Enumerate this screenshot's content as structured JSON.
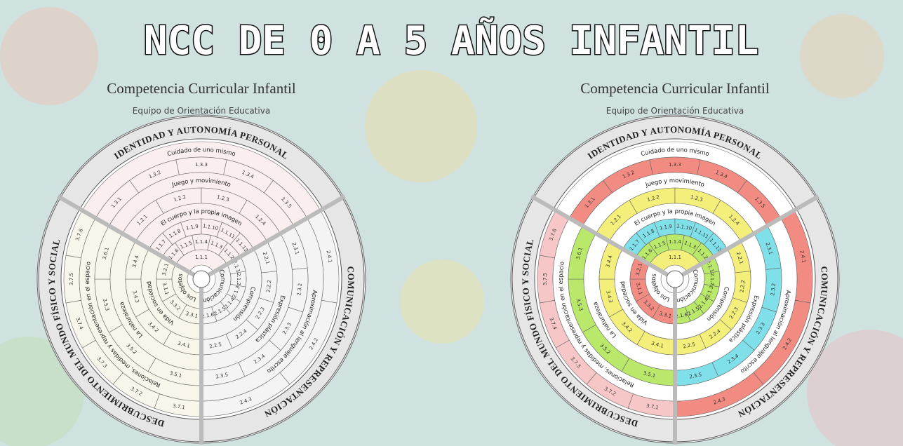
{
  "header": {
    "title": "NCC DE 0 A 5 AÑOS INFANTIL"
  },
  "wheel": {
    "title": "Competencia Curricular Infantil",
    "subtitle": "Equipo de Orientación Educativa",
    "sectors": [
      {
        "label": "IDENTIDAD Y AUTONOMÍA PERSONAL",
        "rings": [
          {
            "label": "Cuidado de uno mismo"
          },
          {
            "cells": [
              "1.3.1",
              "1.3.2",
              "1.3.3",
              "1.3.4",
              "1.3.5"
            ]
          },
          {
            "label": "Juego y movimiento"
          },
          {
            "cells": [
              "1.2.1",
              "1.2.2",
              "1.2.3",
              "1.2.4"
            ]
          },
          {
            "label": "El cuerpo y la propia imagen"
          },
          {
            "cells": [
              "1.1.7",
              "1.1.8",
              "1.1.9",
              "1.1.10",
              "1.1.11",
              "1.1.12"
            ]
          },
          {
            "cells": [
              "1.1.6",
              "1.1.5",
              "1.1.4",
              "1.1.3",
              "1.1.2"
            ]
          },
          {
            "cells": [
              "1.1.1"
            ]
          }
        ]
      },
      {
        "label": "COMUNICACIÓN Y REPRESENTACIÓN",
        "rings": [
          {
            "cells": [
              "2.4.1",
              "2.4.2",
              "2.4.3"
            ]
          },
          {
            "label": "Aproximación al lenguaje escrito"
          },
          {
            "cells": [
              "2.3.1",
              "2.3.2",
              "2.3.3",
              "2.3.4",
              "2.3.5"
            ]
          },
          {
            "label": "Expresión plástica"
          },
          {
            "cells": [
              "2.2.1",
              "2.2.2",
              "2.2.3",
              "2.2.4",
              "2.2.5"
            ]
          },
          {
            "label": "Comprensión"
          },
          {
            "cells": [
              "2.1.1",
              "2.1.2",
              "2.1.3",
              "2.1.4",
              "2.1.5",
              "2.1.6"
            ]
          },
          {
            "label": "Comunicación"
          }
        ]
      },
      {
        "label": "DESCUBRIMIENTO DEL MUNDO FÍSICO Y SOCIAL",
        "rings": [
          {
            "cells": [
              "3.7.1",
              "3.7.2",
              "3.7.3",
              "3.7.4",
              "3.7.5",
              "3.7.6"
            ]
          },
          {
            "label": "Relaciones, medidas y representación en el espacio"
          },
          {
            "cells": [
              "3.5.1",
              "3.5.2",
              "3.5.3",
              "3.6.1"
            ]
          },
          {
            "label": "La naturaleza"
          },
          {
            "cells": [
              "3.4.1",
              "3.4.2",
              "3.4.3",
              "3.4.4"
            ]
          },
          {
            "label": "Vida en sociedad"
          },
          {
            "cells": [
              "3.3.1",
              "3.3.2",
              "3.1.1",
              "3.2.1"
            ]
          },
          {
            "label": "Los objetos"
          }
        ]
      }
    ]
  },
  "colored_wheel_fills": [
    [
      "#ffffff",
      "#f28b82",
      "#ffffff",
      "#f4ef7a",
      "#ffffff",
      "#7fe0ea",
      "#b9e86a",
      "#f4ef7a"
    ],
    [
      "#f28b82",
      "#ffffff",
      "#7fe0ea",
      "#ffffff",
      "#f4ef7a",
      "#ffffff",
      "#b9e86a",
      "#ffffff"
    ],
    [
      "#f7c6c6",
      "#ffffff",
      "#b9e86a",
      "#ffffff",
      "#f4ef7a",
      "#ffffff",
      "#f28b82",
      "#ffffff"
    ]
  ]
}
